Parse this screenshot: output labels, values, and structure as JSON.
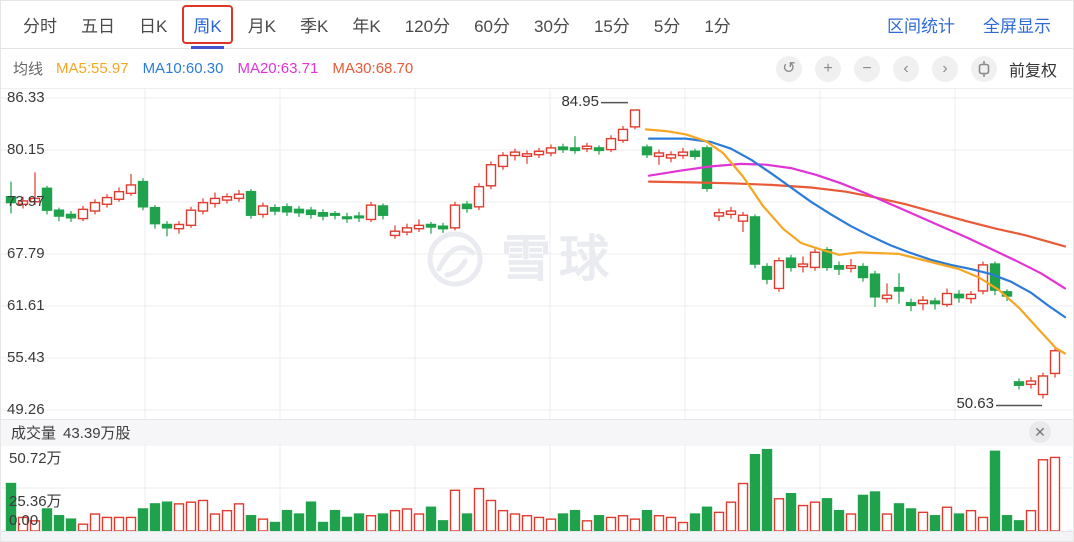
{
  "tab_bar": {
    "tabs": [
      {
        "label": "分时",
        "selected": false,
        "boxed": false
      },
      {
        "label": "五日",
        "selected": false,
        "boxed": false
      },
      {
        "label": "日K",
        "selected": false,
        "boxed": false
      },
      {
        "label": "周K",
        "selected": true,
        "boxed": true
      },
      {
        "label": "月K",
        "selected": false,
        "boxed": false
      },
      {
        "label": "季K",
        "selected": false,
        "boxed": false
      },
      {
        "label": "年K",
        "selected": false,
        "boxed": false
      },
      {
        "label": "120分",
        "selected": false,
        "boxed": false
      },
      {
        "label": "60分",
        "selected": false,
        "boxed": false
      },
      {
        "label": "30分",
        "selected": false,
        "boxed": false
      },
      {
        "label": "15分",
        "selected": false,
        "boxed": false
      },
      {
        "label": "5分",
        "selected": false,
        "boxed": false
      },
      {
        "label": "1分",
        "selected": false,
        "boxed": false
      }
    ],
    "right_links": [
      "区间统计",
      "全屏显示"
    ]
  },
  "toolbar": {
    "legend_label": "均线",
    "ma_items": [
      {
        "name": "MA5",
        "value": "55.97",
        "color": "#f5a623"
      },
      {
        "name": "MA10",
        "value": "60.30",
        "color": "#2b7cd8"
      },
      {
        "name": "MA20",
        "value": "63.71",
        "color": "#e234d4"
      },
      {
        "name": "MA30",
        "value": "68.70",
        "color": "#e85a38"
      }
    ],
    "controls": [
      "undo",
      "zoom-in",
      "zoom-out",
      "prev",
      "next",
      "chart-style"
    ],
    "adjust_label": "前复权"
  },
  "watermark_text": "雪球",
  "volume_pane": {
    "title": "成交量",
    "value": "43.39万股",
    "axis_labels": [
      "50.72万",
      "25.36万",
      "0.00"
    ],
    "axis_max": 50.72,
    "close_glyph": "✕"
  },
  "chart_data": {
    "type": "candlestick",
    "price_axis_labels": [
      86.33,
      80.15,
      73.97,
      67.79,
      61.61,
      55.43,
      49.26
    ],
    "grid": true,
    "colors": {
      "up": "#e03b2e",
      "down": "#1fa24b"
    },
    "annotations": [
      {
        "label": "84.95",
        "candle_index": 52,
        "anchor": "high"
      },
      {
        "label": "50.63",
        "candle_index": 86,
        "anchor": "low"
      }
    ],
    "candles": [
      [
        74.6,
        73.9,
        72.6,
        76.4,
        28
      ],
      [
        73.7,
        74.1,
        73.2,
        74.6,
        8
      ],
      [
        74.0,
        74.4,
        73.6,
        77.5,
        6
      ],
      [
        75.6,
        73.0,
        72.5,
        75.9,
        13
      ],
      [
        73.0,
        72.3,
        71.7,
        73.3,
        9
      ],
      [
        72.5,
        72.1,
        71.6,
        72.9,
        7
      ],
      [
        72.0,
        73.1,
        71.7,
        73.5,
        4
      ],
      [
        72.9,
        73.9,
        72.5,
        74.3,
        10
      ],
      [
        73.7,
        74.5,
        73.3,
        74.9,
        8
      ],
      [
        74.3,
        75.2,
        74.0,
        75.7,
        8
      ],
      [
        75.0,
        76.0,
        74.7,
        77.3,
        8
      ],
      [
        76.4,
        73.4,
        73.0,
        76.8,
        13
      ],
      [
        73.3,
        71.4,
        70.8,
        73.6,
        16
      ],
      [
        71.3,
        70.9,
        69.9,
        71.7,
        17
      ],
      [
        70.8,
        71.3,
        70.2,
        71.7,
        16
      ],
      [
        71.2,
        73.0,
        70.9,
        73.4,
        17
      ],
      [
        72.9,
        73.9,
        72.5,
        74.4,
        18
      ],
      [
        73.8,
        74.4,
        73.3,
        75.1,
        10
      ],
      [
        74.2,
        74.6,
        73.8,
        75.0,
        12
      ],
      [
        74.4,
        74.9,
        74.0,
        75.4,
        16
      ],
      [
        75.2,
        72.4,
        72.0,
        75.5,
        9
      ],
      [
        72.5,
        73.5,
        72.1,
        73.9,
        7
      ],
      [
        73.3,
        72.9,
        72.4,
        73.7,
        5
      ],
      [
        73.4,
        72.8,
        72.3,
        73.8,
        12
      ],
      [
        73.1,
        72.7,
        72.2,
        73.5,
        10
      ],
      [
        73.0,
        72.5,
        72.0,
        73.4,
        17
      ],
      [
        72.7,
        72.3,
        71.8,
        73.1,
        5
      ],
      [
        72.6,
        72.4,
        71.9,
        72.9,
        12
      ],
      [
        72.2,
        72.0,
        71.5,
        72.7,
        8
      ],
      [
        72.3,
        72.1,
        71.6,
        72.8,
        10
      ],
      [
        71.9,
        73.6,
        71.6,
        74.0,
        9
      ],
      [
        73.5,
        72.4,
        71.9,
        73.8,
        10
      ],
      [
        70.0,
        70.5,
        69.6,
        71.2,
        12
      ],
      [
        70.4,
        70.9,
        70.0,
        71.4,
        13
      ],
      [
        70.8,
        71.2,
        70.4,
        71.9,
        10
      ],
      [
        71.3,
        71.0,
        70.2,
        71.6,
        14
      ],
      [
        71.1,
        70.8,
        70.3,
        71.5,
        6
      ],
      [
        70.9,
        73.6,
        70.6,
        74.0,
        24
      ],
      [
        73.7,
        73.2,
        72.7,
        74.1,
        10
      ],
      [
        73.4,
        75.8,
        73.0,
        76.2,
        25
      ],
      [
        75.9,
        78.4,
        75.5,
        78.8,
        18
      ],
      [
        78.2,
        79.5,
        77.8,
        79.9,
        12
      ],
      [
        79.5,
        79.9,
        78.9,
        80.3,
        10
      ],
      [
        79.4,
        79.7,
        78.5,
        80.1,
        9
      ],
      [
        79.6,
        80.0,
        79.2,
        80.4,
        8
      ],
      [
        79.8,
        80.4,
        79.4,
        80.8,
        7
      ],
      [
        80.5,
        80.2,
        79.8,
        80.9,
        10
      ],
      [
        80.4,
        80.1,
        79.7,
        81.8,
        12
      ],
      [
        80.3,
        80.6,
        79.9,
        81.0,
        6
      ],
      [
        80.4,
        80.1,
        79.6,
        80.7,
        9
      ],
      [
        80.2,
        81.5,
        79.9,
        81.9,
        8
      ],
      [
        81.3,
        82.6,
        81.0,
        83.0,
        9
      ],
      [
        82.9,
        84.9,
        82.6,
        84.95,
        7
      ],
      [
        80.5,
        79.6,
        79.2,
        80.8,
        12
      ],
      [
        79.4,
        79.8,
        78.4,
        80.2,
        9
      ],
      [
        79.2,
        79.6,
        78.7,
        80.0,
        8
      ],
      [
        79.5,
        79.9,
        79.1,
        80.4,
        5
      ],
      [
        80.0,
        79.4,
        79.0,
        80.3,
        10
      ],
      [
        80.4,
        75.6,
        75.2,
        80.7,
        14
      ],
      [
        72.3,
        72.7,
        71.7,
        73.2,
        11
      ],
      [
        72.5,
        72.9,
        72.0,
        73.4,
        17
      ],
      [
        71.7,
        72.4,
        70.4,
        72.8,
        28
      ],
      [
        72.2,
        66.6,
        66.1,
        72.5,
        45
      ],
      [
        66.3,
        64.8,
        64.2,
        66.7,
        48
      ],
      [
        63.7,
        67.0,
        63.3,
        67.4,
        19
      ],
      [
        67.3,
        66.2,
        65.7,
        67.7,
        22
      ],
      [
        66.3,
        66.6,
        65.6,
        67.5,
        15
      ],
      [
        66.2,
        68.0,
        65.8,
        68.4,
        17
      ],
      [
        68.3,
        66.2,
        65.8,
        68.6,
        19
      ],
      [
        66.4,
        66.0,
        65.3,
        66.9,
        12
      ],
      [
        66.1,
        66.4,
        65.6,
        67.2,
        10
      ],
      [
        66.3,
        65.0,
        64.5,
        66.7,
        21
      ],
      [
        65.4,
        62.7,
        61.5,
        65.8,
        23
      ],
      [
        62.5,
        62.9,
        62.0,
        64.3,
        10
      ],
      [
        63.8,
        63.4,
        61.9,
        65.5,
        16
      ],
      [
        62.0,
        61.7,
        61.0,
        62.5,
        13
      ],
      [
        61.9,
        62.3,
        61.1,
        62.8,
        11
      ],
      [
        62.2,
        61.9,
        61.2,
        62.6,
        9
      ],
      [
        61.8,
        63.1,
        61.5,
        63.7,
        14
      ],
      [
        63.0,
        62.6,
        62.0,
        63.5,
        10
      ],
      [
        62.5,
        63.0,
        61.9,
        63.4,
        12
      ],
      [
        63.4,
        66.5,
        63.0,
        66.9,
        8
      ],
      [
        66.6,
        63.5,
        62.9,
        66.9,
        47
      ],
      [
        63.3,
        62.8,
        62.2,
        63.6,
        9
      ],
      [
        52.6,
        52.2,
        51.7,
        53.0,
        6
      ],
      [
        52.3,
        52.7,
        51.8,
        53.2,
        12
      ],
      [
        51.1,
        53.3,
        50.63,
        53.7,
        42
      ],
      [
        53.6,
        56.3,
        53.1,
        56.8,
        43.39
      ]
    ],
    "ma_lines": [
      {
        "name": "MA30",
        "color": "#e85a38",
        "points": [
          [
            648,
            76.4
          ],
          [
            690,
            76.3
          ],
          [
            730,
            76.2
          ],
          [
            770,
            76.0
          ],
          [
            810,
            75.7
          ],
          [
            845,
            75.2
          ],
          [
            875,
            74.5
          ],
          [
            905,
            73.7
          ],
          [
            935,
            72.7
          ],
          [
            965,
            71.7
          ],
          [
            995,
            70.8
          ],
          [
            1025,
            70.0
          ],
          [
            1064,
            68.7
          ]
        ]
      },
      {
        "name": "MA20",
        "color": "#e234d4",
        "points": [
          [
            648,
            77.1
          ],
          [
            680,
            77.7
          ],
          [
            710,
            78.2
          ],
          [
            740,
            78.5
          ],
          [
            765,
            78.4
          ],
          [
            790,
            78.0
          ],
          [
            815,
            77.2
          ],
          [
            840,
            76.2
          ],
          [
            865,
            75.0
          ],
          [
            890,
            73.7
          ],
          [
            915,
            72.4
          ],
          [
            940,
            71.1
          ],
          [
            965,
            69.8
          ],
          [
            990,
            68.4
          ],
          [
            1015,
            67.0
          ],
          [
            1040,
            65.5
          ],
          [
            1064,
            63.71
          ]
        ]
      },
      {
        "name": "MA10",
        "color": "#2b7cd8",
        "points": [
          [
            648,
            81.5
          ],
          [
            685,
            81.5
          ],
          [
            710,
            81.1
          ],
          [
            730,
            80.3
          ],
          [
            750,
            79.0
          ],
          [
            770,
            77.4
          ],
          [
            790,
            75.7
          ],
          [
            810,
            74.0
          ],
          [
            830,
            72.5
          ],
          [
            850,
            71.1
          ],
          [
            870,
            69.9
          ],
          [
            890,
            68.8
          ],
          [
            910,
            67.9
          ],
          [
            930,
            67.1
          ],
          [
            950,
            66.5
          ],
          [
            970,
            66.0
          ],
          [
            990,
            65.4
          ],
          [
            1010,
            64.5
          ],
          [
            1030,
            63.2
          ],
          [
            1048,
            61.6
          ],
          [
            1064,
            60.3
          ]
        ]
      },
      {
        "name": "MA5",
        "color": "#f5a623",
        "points": [
          [
            645,
            82.6
          ],
          [
            665,
            82.4
          ],
          [
            685,
            82.0
          ],
          [
            705,
            81.2
          ],
          [
            722,
            79.8
          ],
          [
            742,
            77.0
          ],
          [
            762,
            73.5
          ],
          [
            782,
            70.8
          ],
          [
            800,
            69.1
          ],
          [
            818,
            68.4
          ],
          [
            838,
            67.7
          ],
          [
            858,
            68.0
          ],
          [
            878,
            67.9
          ],
          [
            898,
            67.8
          ],
          [
            918,
            67.2
          ],
          [
            938,
            66.6
          ],
          [
            958,
            66.0
          ],
          [
            978,
            65.0
          ],
          [
            998,
            63.5
          ],
          [
            1018,
            61.4
          ],
          [
            1038,
            58.8
          ],
          [
            1055,
            56.6
          ],
          [
            1064,
            55.97
          ]
        ]
      }
    ]
  }
}
